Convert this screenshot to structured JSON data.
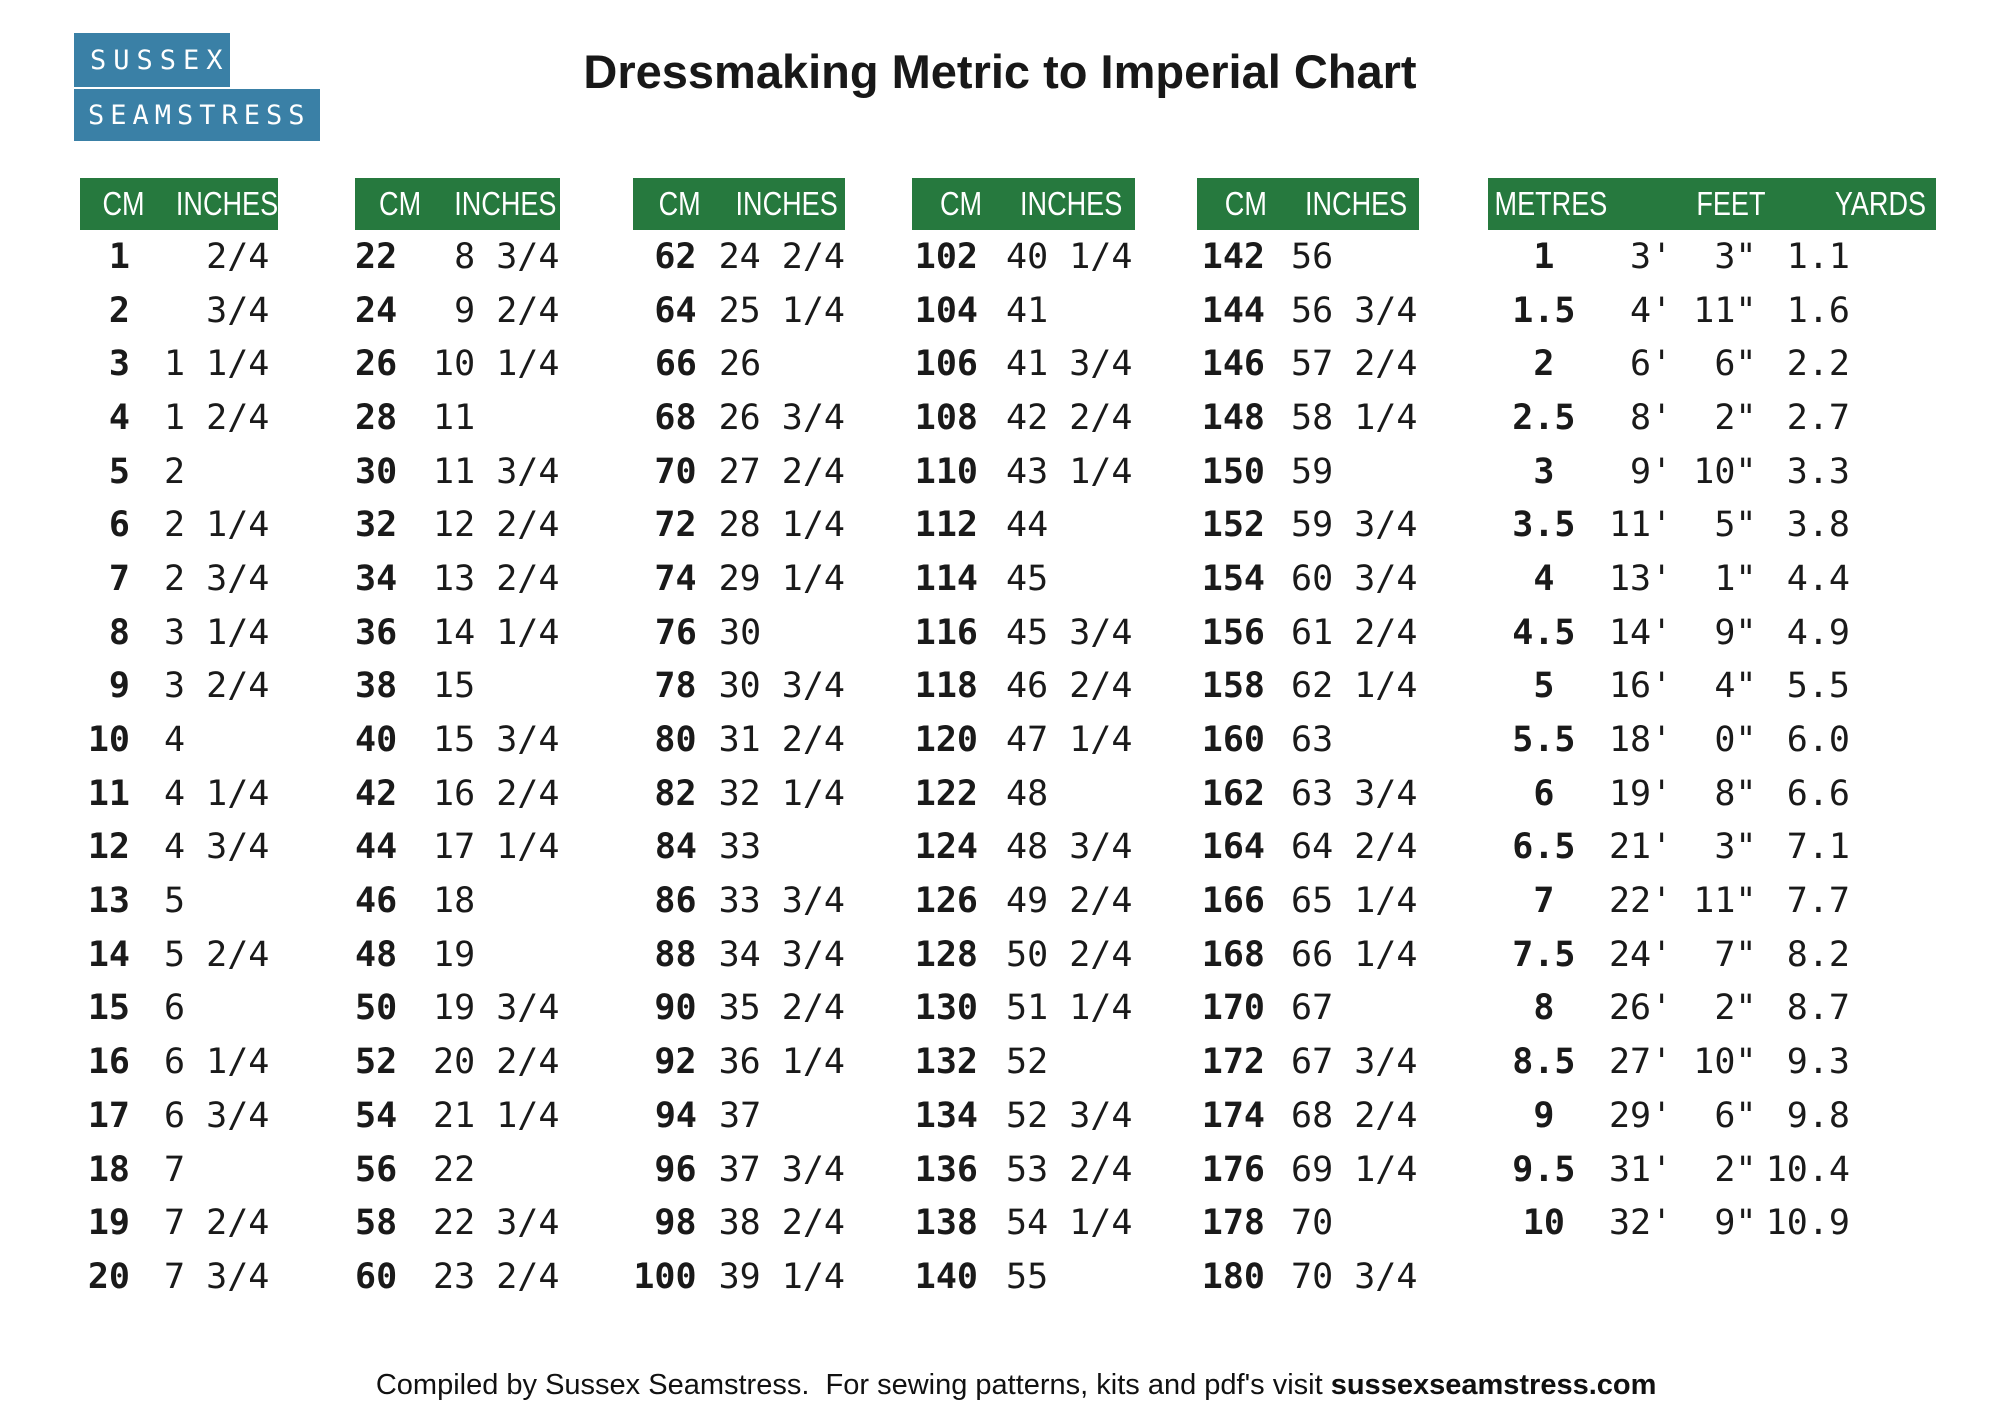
{
  "title": "Dressmaking Metric to Imperial Chart",
  "logo": {
    "line1": "SUSSEX",
    "line2": "SEAMSTRESS"
  },
  "colors": {
    "header_green": "#26793e",
    "logo_blue": "#3a80a6",
    "text_black": "#1a1a1a"
  },
  "cm_tables": [
    {
      "headers": [
        "CM",
        "INCHES"
      ],
      "rows": [
        [
          "1",
          "  2/4"
        ],
        [
          "2",
          "  3/4"
        ],
        [
          "3",
          "1 1/4"
        ],
        [
          "4",
          "1 2/4"
        ],
        [
          "5",
          "2"
        ],
        [
          "6",
          "2 1/4"
        ],
        [
          "7",
          "2 3/4"
        ],
        [
          "8",
          "3 1/4"
        ],
        [
          "9",
          "3 2/4"
        ],
        [
          "10",
          "4"
        ],
        [
          "11",
          "4 1/4"
        ],
        [
          "12",
          "4 3/4"
        ],
        [
          "13",
          "5"
        ],
        [
          "14",
          "5 2/4"
        ],
        [
          "15",
          "6"
        ],
        [
          "16",
          "6 1/4"
        ],
        [
          "17",
          "6 3/4"
        ],
        [
          "18",
          "7"
        ],
        [
          "19",
          "7 2/4"
        ],
        [
          "20",
          "7 3/4"
        ]
      ]
    },
    {
      "headers": [
        "CM",
        "INCHES"
      ],
      "rows": [
        [
          "22",
          " 8 3/4"
        ],
        [
          "24",
          " 9 2/4"
        ],
        [
          "26",
          "10 1/4"
        ],
        [
          "28",
          "11"
        ],
        [
          "30",
          "11 3/4"
        ],
        [
          "32",
          "12 2/4"
        ],
        [
          "34",
          "13 2/4"
        ],
        [
          "36",
          "14 1/4"
        ],
        [
          "38",
          "15"
        ],
        [
          "40",
          "15 3/4"
        ],
        [
          "42",
          "16 2/4"
        ],
        [
          "44",
          "17 1/4"
        ],
        [
          "46",
          "18"
        ],
        [
          "48",
          "19"
        ],
        [
          "50",
          "19 3/4"
        ],
        [
          "52",
          "20 2/4"
        ],
        [
          "54",
          "21 1/4"
        ],
        [
          "56",
          "22"
        ],
        [
          "58",
          "22 3/4"
        ],
        [
          "60",
          "23 2/4"
        ]
      ]
    },
    {
      "headers": [
        "CM",
        "INCHES"
      ],
      "rows": [
        [
          "62",
          "24 2/4"
        ],
        [
          "64",
          "25 1/4"
        ],
        [
          "66",
          "26"
        ],
        [
          "68",
          "26 3/4"
        ],
        [
          "70",
          "27 2/4"
        ],
        [
          "72",
          "28 1/4"
        ],
        [
          "74",
          "29 1/4"
        ],
        [
          "76",
          "30"
        ],
        [
          "78",
          "30 3/4"
        ],
        [
          "80",
          "31 2/4"
        ],
        [
          "82",
          "32 1/4"
        ],
        [
          "84",
          "33"
        ],
        [
          "86",
          "33 3/4"
        ],
        [
          "88",
          "34 3/4"
        ],
        [
          "90",
          "35 2/4"
        ],
        [
          "92",
          "36 1/4"
        ],
        [
          "94",
          "37"
        ],
        [
          "96",
          "37 3/4"
        ],
        [
          "98",
          "38 2/4"
        ],
        [
          "100",
          "39 1/4"
        ]
      ]
    },
    {
      "headers": [
        "CM",
        "INCHES"
      ],
      "rows": [
        [
          "102",
          "40 1/4"
        ],
        [
          "104",
          "41"
        ],
        [
          "106",
          "41 3/4"
        ],
        [
          "108",
          "42 2/4"
        ],
        [
          "110",
          "43 1/4"
        ],
        [
          "112",
          "44"
        ],
        [
          "114",
          "45"
        ],
        [
          "116",
          "45 3/4"
        ],
        [
          "118",
          "46 2/4"
        ],
        [
          "120",
          "47 1/4"
        ],
        [
          "122",
          "48"
        ],
        [
          "124",
          "48 3/4"
        ],
        [
          "126",
          "49 2/4"
        ],
        [
          "128",
          "50 2/4"
        ],
        [
          "130",
          "51 1/4"
        ],
        [
          "132",
          "52"
        ],
        [
          "134",
          "52 3/4"
        ],
        [
          "136",
          "53 2/4"
        ],
        [
          "138",
          "54 1/4"
        ],
        [
          "140",
          "55"
        ]
      ]
    },
    {
      "headers": [
        "CM",
        "INCHES"
      ],
      "rows": [
        [
          "142",
          "56"
        ],
        [
          "144",
          "56 3/4"
        ],
        [
          "146",
          "57 2/4"
        ],
        [
          "148",
          "58 1/4"
        ],
        [
          "150",
          "59"
        ],
        [
          "152",
          "59 3/4"
        ],
        [
          "154",
          "60 3/4"
        ],
        [
          "156",
          "61 2/4"
        ],
        [
          "158",
          "62 1/4"
        ],
        [
          "160",
          "63"
        ],
        [
          "162",
          "63 3/4"
        ],
        [
          "164",
          "64 2/4"
        ],
        [
          "166",
          "65 1/4"
        ],
        [
          "168",
          "66 1/4"
        ],
        [
          "170",
          "67"
        ],
        [
          "172",
          "67 3/4"
        ],
        [
          "174",
          "68 2/4"
        ],
        [
          "176",
          "69 1/4"
        ],
        [
          "178",
          "70"
        ],
        [
          "180",
          "70 3/4"
        ]
      ]
    }
  ],
  "metres_table": {
    "headers": [
      "METRES",
      "FEET",
      "YARDS"
    ],
    "rows": [
      [
        "1",
        " 3'  3\"",
        " 1.1"
      ],
      [
        "1.5",
        " 4' 11\"",
        " 1.6"
      ],
      [
        "2",
        " 6'  6\"",
        " 2.2"
      ],
      [
        "2.5",
        " 8'  2\"",
        " 2.7"
      ],
      [
        "3",
        " 9' 10\"",
        " 3.3"
      ],
      [
        "3.5",
        "11'  5\"",
        " 3.8"
      ],
      [
        "4",
        "13'  1\"",
        " 4.4"
      ],
      [
        "4.5",
        "14'  9\"",
        " 4.9"
      ],
      [
        "5",
        "16'  4\"",
        " 5.5"
      ],
      [
        "5.5",
        "18'  0\"",
        " 6.0"
      ],
      [
        "6",
        "19'  8\"",
        " 6.6"
      ],
      [
        "6.5",
        "21'  3\"",
        " 7.1"
      ],
      [
        "7",
        "22' 11\"",
        " 7.7"
      ],
      [
        "7.5",
        "24'  7\"",
        " 8.2"
      ],
      [
        "8",
        "26'  2\"",
        " 8.7"
      ],
      [
        "8.5",
        "27' 10\"",
        " 9.3"
      ],
      [
        "9",
        "29'  6\"",
        " 9.8"
      ],
      [
        "9.5",
        "31'  2\"",
        "10.4"
      ],
      [
        "10",
        "32'  9\"",
        "10.9"
      ]
    ]
  },
  "footer": {
    "prefix": "Compiled by Sussex Seamstress.  For sewing patterns, kits and pdf's visit ",
    "site": "sussexseamstress.com"
  }
}
